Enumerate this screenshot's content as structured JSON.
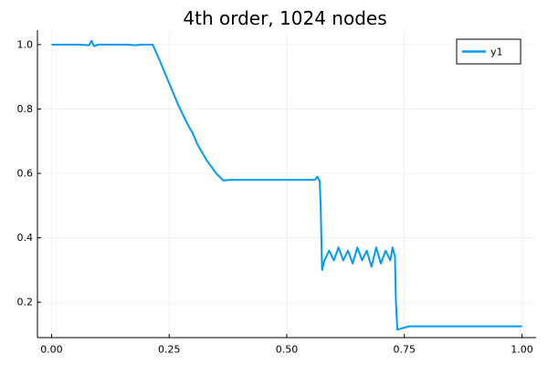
{
  "chart_data": {
    "type": "line",
    "title": "4th order, 1024 nodes",
    "xlabel": "",
    "ylabel": "",
    "xlim": [
      -0.03,
      1.03
    ],
    "ylim": [
      0.09,
      1.045
    ],
    "x_ticks": [
      0.0,
      0.25,
      0.5,
      0.75,
      1.0
    ],
    "x_tick_labels": [
      "0.00",
      "0.25",
      "0.50",
      "0.75",
      "1.00"
    ],
    "y_ticks": [
      0.2,
      0.4,
      0.6,
      0.8,
      1.0
    ],
    "y_tick_labels": [
      "0.2",
      "0.4",
      "0.6",
      "0.8",
      "1.0"
    ],
    "grid": true,
    "legend_position": "top-right",
    "series": [
      {
        "name": "y1",
        "color": "#009AFA",
        "x": [
          0.0,
          0.02,
          0.04,
          0.06,
          0.08,
          0.085,
          0.09,
          0.1,
          0.12,
          0.14,
          0.16,
          0.18,
          0.19,
          0.2,
          0.215,
          0.23,
          0.25,
          0.27,
          0.29,
          0.3,
          0.31,
          0.33,
          0.35,
          0.365,
          0.38,
          0.4,
          0.42,
          0.44,
          0.46,
          0.48,
          0.5,
          0.52,
          0.54,
          0.56,
          0.565,
          0.57,
          0.572,
          0.575,
          0.58,
          0.59,
          0.6,
          0.61,
          0.62,
          0.63,
          0.64,
          0.65,
          0.66,
          0.67,
          0.68,
          0.69,
          0.7,
          0.71,
          0.72,
          0.725,
          0.73,
          0.732,
          0.735,
          0.76,
          0.8,
          0.9,
          1.0
        ],
        "y": [
          1.0,
          1.0,
          1.0,
          1.0,
          0.998,
          1.012,
          0.995,
          1.0,
          1.0,
          1.0,
          1.0,
          0.998,
          1.0,
          1.0,
          1.0,
          0.95,
          0.88,
          0.81,
          0.75,
          0.725,
          0.69,
          0.64,
          0.6,
          0.578,
          0.58,
          0.58,
          0.58,
          0.58,
          0.58,
          0.58,
          0.58,
          0.58,
          0.58,
          0.58,
          0.59,
          0.575,
          0.5,
          0.3,
          0.33,
          0.36,
          0.33,
          0.37,
          0.33,
          0.36,
          0.32,
          0.37,
          0.33,
          0.36,
          0.31,
          0.37,
          0.32,
          0.36,
          0.33,
          0.37,
          0.34,
          0.2,
          0.115,
          0.125,
          0.125,
          0.125,
          0.125
        ]
      }
    ]
  }
}
